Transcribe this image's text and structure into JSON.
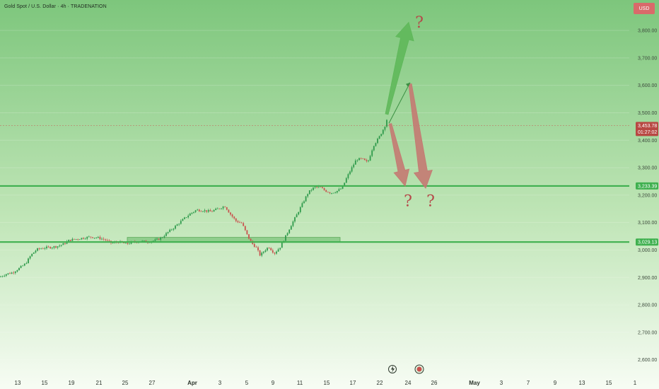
{
  "header": {
    "title": "Gold Spot / U.S. Dollar · 4h · TRADENATION"
  },
  "currency_button": "USD",
  "colors": {
    "background_top": "#7dc67c",
    "background_bottom": "#f7fcf4",
    "level_line": "#3fb04f",
    "candle_up": "#2e9a4b",
    "candle_down": "#c9514d",
    "zone_fill": "#7dc67c",
    "arrow_up": "#5fb85a",
    "arrow_down": "#c47a72",
    "question_mark": "#b54a4a"
  },
  "chart_data": {
    "type": "candlestick",
    "ylim": [
      2540,
      3880
    ],
    "y_ticks": [
      {
        "label": "3,800.00",
        "v": 3800
      },
      {
        "label": "3,700.00",
        "v": 3700
      },
      {
        "label": "3,600.00",
        "v": 3600
      },
      {
        "label": "3,500.00",
        "v": 3500
      },
      {
        "label": "3,400.00",
        "v": 3400
      },
      {
        "label": "3,300.00",
        "v": 3300
      },
      {
        "label": "3,200.00",
        "v": 3200
      },
      {
        "label": "3,100.00",
        "v": 3100
      },
      {
        "label": "3,000.00",
        "v": 3000
      },
      {
        "label": "2,900.00",
        "v": 2900
      },
      {
        "label": "2,800.00",
        "v": 2800
      },
      {
        "label": "2,700.00",
        "v": 2700
      },
      {
        "label": "2,600.00",
        "v": 2600
      }
    ],
    "x_ticks": [
      "13",
      "15",
      "19",
      "21",
      "25",
      "27",
      "Apr",
      "3",
      "5",
      "9",
      "11",
      "15",
      "17",
      "22",
      "24",
      "26",
      "May",
      "3",
      "7",
      "9",
      "13",
      "15",
      "1"
    ],
    "x_tick_positions": [
      25,
      63,
      101,
      140,
      177,
      215,
      272,
      311,
      349,
      386,
      424,
      462,
      499,
      537,
      577,
      614,
      671,
      709,
      747,
      785,
      823,
      861,
      898
    ],
    "price_series": [
      [
        0,
        2902
      ],
      [
        8,
        2912
      ],
      [
        18,
        2918
      ],
      [
        28,
        2935
      ],
      [
        36,
        2950
      ],
      [
        44,
        2982
      ],
      [
        52,
        3002
      ],
      [
        62,
        3008
      ],
      [
        72,
        3010
      ],
      [
        82,
        3014
      ],
      [
        90,
        3022
      ],
      [
        98,
        3036
      ],
      [
        108,
        3040
      ],
      [
        118,
        3044
      ],
      [
        128,
        3048
      ],
      [
        138,
        3045
      ],
      [
        148,
        3038
      ],
      [
        158,
        3025
      ],
      [
        168,
        3030
      ],
      [
        178,
        3022
      ],
      [
        188,
        3028
      ],
      [
        198,
        3032
      ],
      [
        208,
        3030
      ],
      [
        218,
        3034
      ],
      [
        228,
        3044
      ],
      [
        238,
        3066
      ],
      [
        246,
        3082
      ],
      [
        254,
        3100
      ],
      [
        262,
        3118
      ],
      [
        270,
        3134
      ],
      [
        278,
        3146
      ],
      [
        288,
        3144
      ],
      [
        298,
        3140
      ],
      [
        308,
        3150
      ],
      [
        318,
        3160
      ],
      [
        326,
        3130
      ],
      [
        334,
        3105
      ],
      [
        342,
        3098
      ],
      [
        350,
        3052
      ],
      [
        356,
        3025
      ],
      [
        362,
        3010
      ],
      [
        368,
        2980
      ],
      [
        374,
        2998
      ],
      [
        380,
        3012
      ],
      [
        388,
        2988
      ],
      [
        396,
        3010
      ],
      [
        404,
        3050
      ],
      [
        412,
        3092
      ],
      [
        420,
        3130
      ],
      [
        428,
        3170
      ],
      [
        436,
        3210
      ],
      [
        444,
        3228
      ],
      [
        452,
        3230
      ],
      [
        460,
        3216
      ],
      [
        468,
        3208
      ],
      [
        476,
        3214
      ],
      [
        484,
        3226
      ],
      [
        490,
        3262
      ],
      [
        496,
        3292
      ],
      [
        504,
        3330
      ],
      [
        512,
        3332
      ],
      [
        520,
        3318
      ],
      [
        528,
        3380
      ],
      [
        536,
        3410
      ],
      [
        544,
        3450
      ],
      [
        549,
        3492
      ],
      [
        552,
        3455
      ]
    ],
    "current_price": {
      "label": "3,453.78",
      "sublabel": "01:27:02",
      "v": 3453.78
    },
    "levels": [
      {
        "label": "3,233.39",
        "v": 3233.39
      },
      {
        "label": "3,029.13",
        "v": 3029.13
      }
    ],
    "zone": {
      "x_start": 180,
      "x_end": 481,
      "v_low": 3030,
      "v_high": 3046
    },
    "projections": {
      "up_arrow": {
        "x0": 547,
        "v0": 3495,
        "x1": 578,
        "v1": 3830
      },
      "thin_line": {
        "x0": 550,
        "v0": 3462,
        "x1": 580,
        "v1": 3610
      },
      "down_arrow_1": {
        "x0": 552,
        "v0": 3460,
        "x1": 573,
        "v1": 3233
      },
      "down_arrow_2": {
        "x0": 580,
        "v0": 3605,
        "x1": 602,
        "v1": 3225
      }
    },
    "annotations": [
      {
        "text": "?",
        "x": 593,
        "v": 3810
      },
      {
        "text": "?",
        "x": 577,
        "v": 3160
      },
      {
        "text": "?",
        "x": 609,
        "v": 3160
      }
    ]
  }
}
